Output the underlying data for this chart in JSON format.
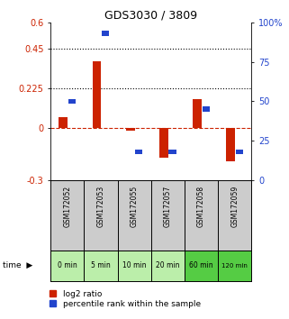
{
  "title": "GDS3030 / 3809",
  "samples": [
    "GSM172052",
    "GSM172053",
    "GSM172055",
    "GSM172057",
    "GSM172058",
    "GSM172059"
  ],
  "time_labels": [
    "0 min",
    "5 min",
    "10 min",
    "20 min",
    "60 min",
    "120 min"
  ],
  "log2_ratio": [
    0.06,
    0.38,
    -0.02,
    -0.17,
    0.16,
    -0.19
  ],
  "percentile_rank": [
    50,
    93,
    18,
    18,
    45,
    18
  ],
  "ylim_left": [
    -0.3,
    0.6
  ],
  "ylim_right": [
    0,
    100
  ],
  "yticks_left": [
    -0.3,
    0,
    0.225,
    0.45,
    0.6
  ],
  "yticks_right": [
    0,
    25,
    50,
    75,
    100
  ],
  "hlines": [
    0.225,
    0.45
  ],
  "bar_color_red": "#cc2200",
  "bar_color_blue": "#2244cc",
  "bar_width": 0.4,
  "time_bg": [
    "#bbeeaa",
    "#bbeeaa",
    "#bbeeaa",
    "#bbeeaa",
    "#55cc44",
    "#55cc44"
  ],
  "legend_red": "log2 ratio",
  "legend_blue": "percentile rank within the sample",
  "background_color": "#ffffff",
  "header_bg": "#cccccc",
  "title_fontsize": 9,
  "tick_fontsize": 7,
  "label_fontsize": 5.5,
  "legend_fontsize": 6.5
}
